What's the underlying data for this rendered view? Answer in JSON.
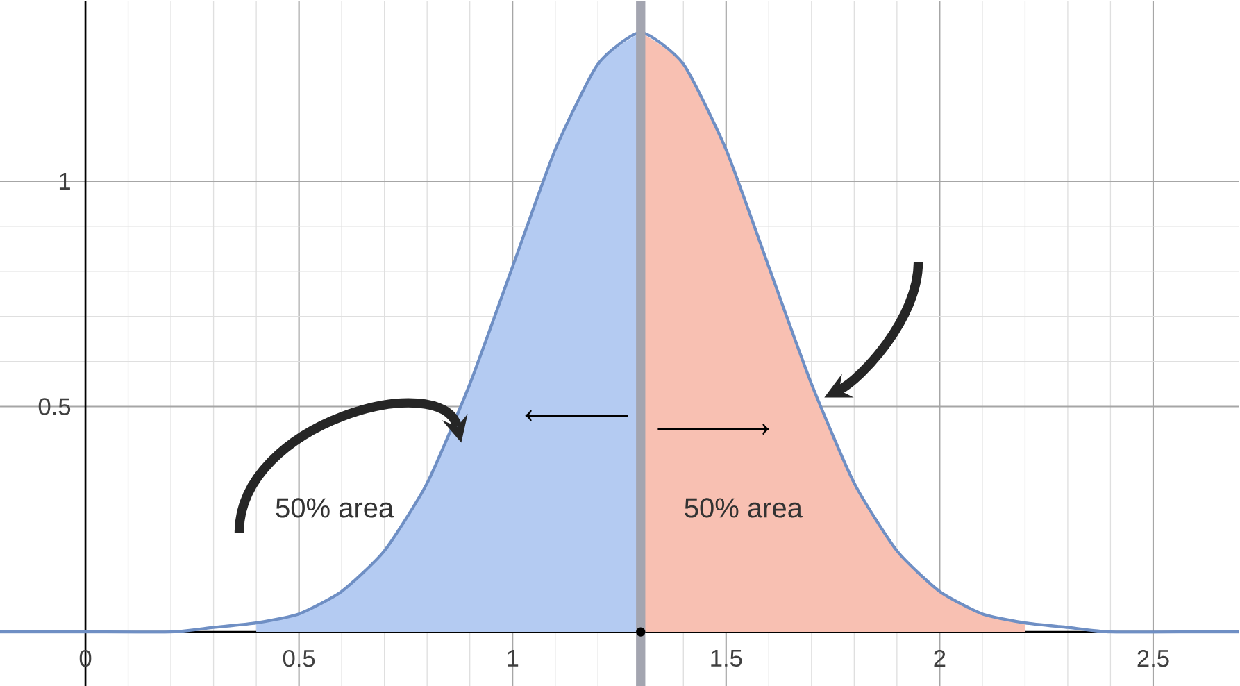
{
  "chart_data": {
    "type": "line",
    "x": [
      -0.2,
      0,
      0.2,
      0.3,
      0.4,
      0.5,
      0.6,
      0.7,
      0.8,
      0.9,
      1.0,
      1.1,
      1.2,
      1.3,
      1.4,
      1.5,
      1.6,
      1.7,
      1.8,
      1.9,
      2.0,
      2.1,
      2.2,
      2.3,
      2.4,
      2.6,
      2.7
    ],
    "series": [
      {
        "type": "area",
        "color": "#b4cbf2",
        "x": [
          0.4,
          0.5,
          0.6,
          0.7,
          0.8,
          0.9,
          1.0,
          1.1,
          1.2,
          1.3
        ],
        "values": [
          0.02,
          0.04,
          0.09,
          0.18,
          0.33,
          0.55,
          0.81,
          1.07,
          1.26,
          1.33
        ]
      },
      {
        "type": "area",
        "color": "#f8c0b2",
        "x": [
          1.3,
          1.4,
          1.5,
          1.6,
          1.7,
          1.8,
          1.9,
          2.0,
          2.1,
          2.2
        ],
        "values": [
          1.33,
          1.26,
          1.07,
          0.81,
          0.55,
          0.33,
          0.18,
          0.09,
          0.04,
          0.02
        ]
      },
      {
        "color": "#6f8fc4",
        "values": [
          0,
          0,
          0,
          0.01,
          0.02,
          0.04,
          0.09,
          0.18,
          0.33,
          0.55,
          0.81,
          1.07,
          1.26,
          1.33,
          1.26,
          1.07,
          0.81,
          0.55,
          0.33,
          0.18,
          0.09,
          0.04,
          0.02,
          0.01,
          0,
          0,
          0
        ]
      }
    ],
    "ref_lines": [
      {
        "axis": "x",
        "value": 1.3,
        "color": "#a3a5b0"
      }
    ],
    "annotations": [
      "50% area",
      "50% area"
    ],
    "xlim": [
      -0.2,
      2.7
    ],
    "ylim": [
      -0.12,
      1.4
    ],
    "xticks": [
      0,
      0.5,
      1,
      1.5,
      2,
      2.5
    ],
    "yticks": [
      0.5,
      1
    ],
    "grid": true,
    "marker": "none",
    "line_style": "solid"
  }
}
